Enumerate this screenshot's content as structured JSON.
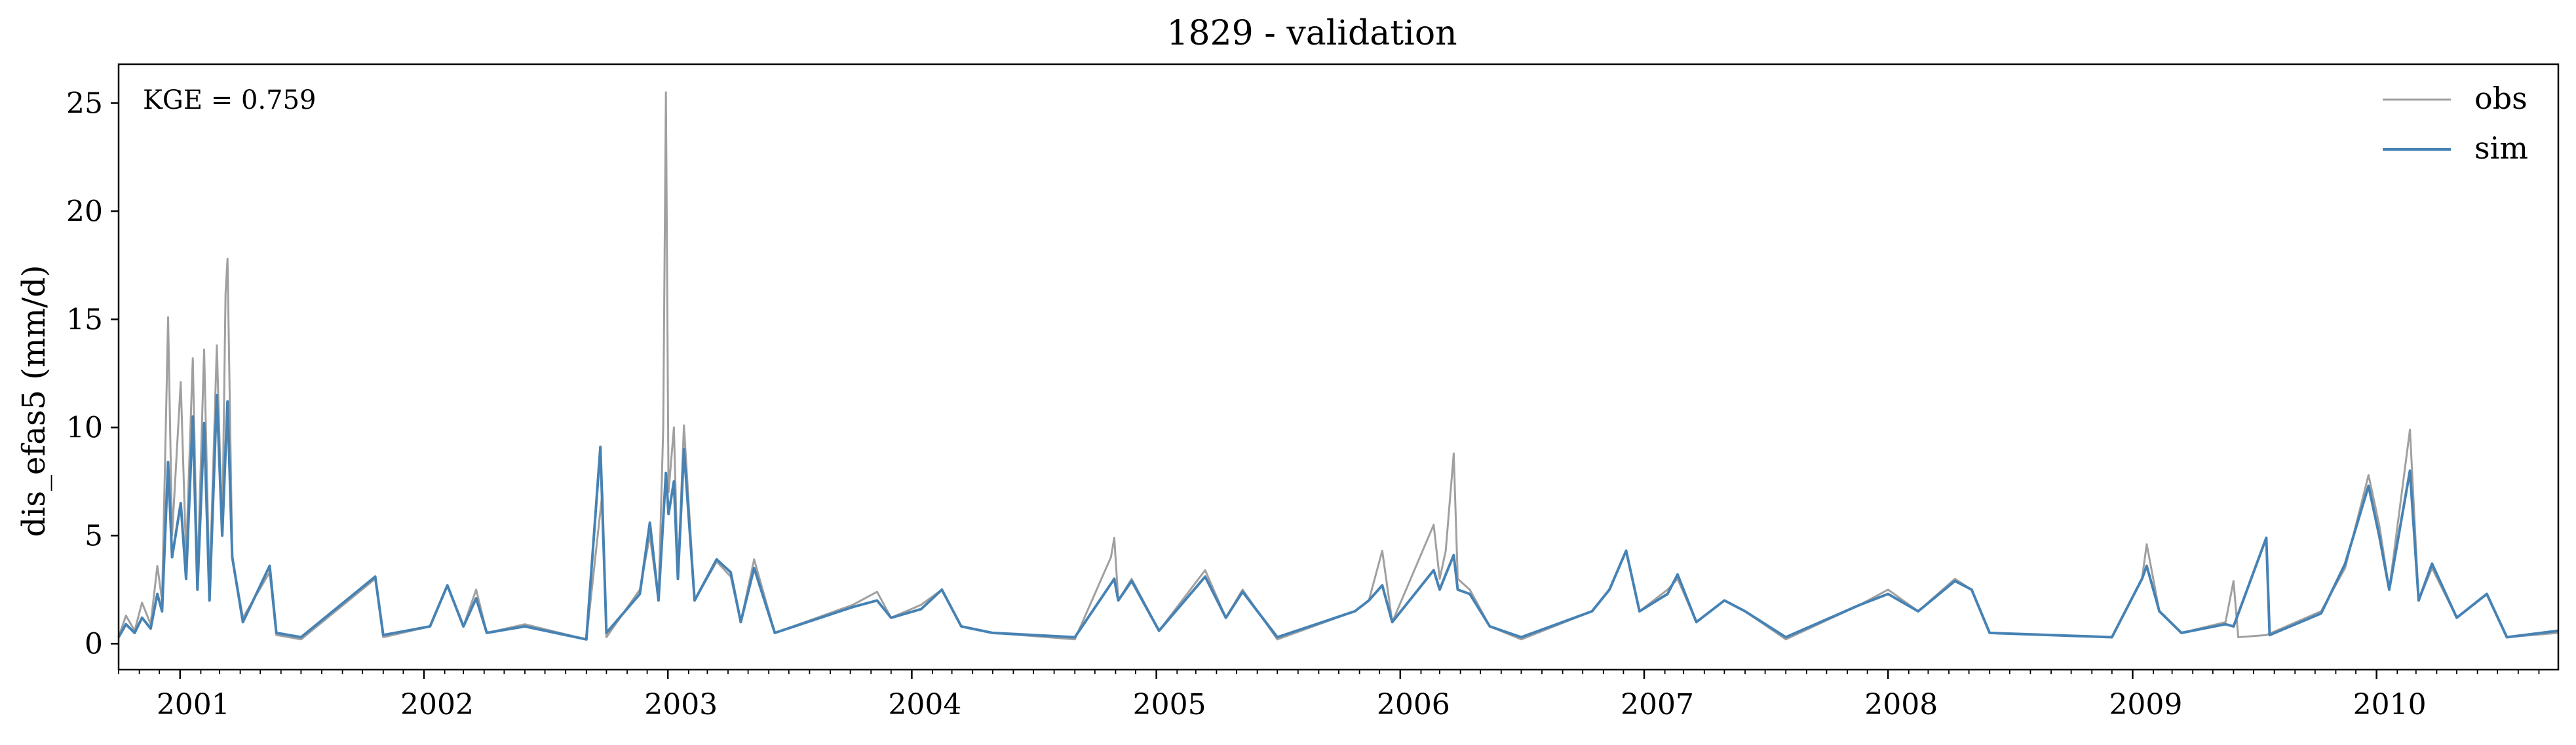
{
  "chart_data": {
    "type": "line",
    "title": "1829 - validation",
    "xlabel": "",
    "ylabel": "dis_efas5 (mm/d)",
    "annotation": "KGE = 0.759",
    "xlim": [
      "2000-10-01",
      "2010-09-30"
    ],
    "ylim": [
      -1.2,
      26.8
    ],
    "x_ticks": [
      "2001",
      "2002",
      "2003",
      "2004",
      "2005",
      "2006",
      "2007",
      "2008",
      "2009",
      "2010"
    ],
    "y_ticks": [
      0,
      5,
      10,
      15,
      20,
      25
    ],
    "grid": false,
    "legend_position": "top-right",
    "series": [
      {
        "name": "obs",
        "color": "#a0a0a0",
        "points": [
          [
            "2000-10-01",
            0.3
          ],
          [
            "2000-10-12",
            1.3
          ],
          [
            "2000-10-25",
            0.6
          ],
          [
            "2000-11-05",
            1.9
          ],
          [
            "2000-11-18",
            0.9
          ],
          [
            "2000-11-28",
            3.6
          ],
          [
            "2000-12-05",
            2.0
          ],
          [
            "2000-12-12",
            12.0
          ],
          [
            "2000-12-14",
            15.1
          ],
          [
            "2000-12-20",
            5.0
          ],
          [
            "2001-01-02",
            12.1
          ],
          [
            "2001-01-10",
            4.0
          ],
          [
            "2001-01-20",
            13.2
          ],
          [
            "2001-01-27",
            3.0
          ],
          [
            "2001-02-06",
            13.6
          ],
          [
            "2001-02-14",
            2.5
          ],
          [
            "2001-02-25",
            13.8
          ],
          [
            "2001-03-05",
            5.0
          ],
          [
            "2001-03-10",
            16.2
          ],
          [
            "2001-03-13",
            17.8
          ],
          [
            "2001-03-20",
            4.0
          ],
          [
            "2001-04-05",
            1.2
          ],
          [
            "2001-05-15",
            3.3
          ],
          [
            "2001-05-25",
            0.4
          ],
          [
            "2001-07-01",
            0.2
          ],
          [
            "2001-10-20",
            3.0
          ],
          [
            "2001-11-01",
            0.3
          ],
          [
            "2002-01-10",
            0.8
          ],
          [
            "2002-02-05",
            2.7
          ],
          [
            "2002-03-01",
            0.8
          ],
          [
            "2002-03-20",
            2.5
          ],
          [
            "2002-04-05",
            0.5
          ],
          [
            "2002-06-01",
            0.9
          ],
          [
            "2002-09-01",
            0.2
          ],
          [
            "2002-09-25",
            7.0
          ],
          [
            "2002-10-01",
            0.3
          ],
          [
            "2002-11-20",
            2.5
          ],
          [
            "2002-12-05",
            5.0
          ],
          [
            "2002-12-18",
            2.0
          ],
          [
            "2002-12-25",
            10.0
          ],
          [
            "2002-12-29",
            25.5
          ],
          [
            "2003-01-02",
            7.0
          ],
          [
            "2003-01-10",
            10.0
          ],
          [
            "2003-01-16",
            3.0
          ],
          [
            "2003-01-25",
            10.1
          ],
          [
            "2003-02-10",
            2.0
          ],
          [
            "2003-03-15",
            3.8
          ],
          [
            "2003-04-05",
            3.1
          ],
          [
            "2003-04-20",
            1.0
          ],
          [
            "2003-05-10",
            3.9
          ],
          [
            "2003-06-10",
            0.5
          ],
          [
            "2003-10-05",
            1.8
          ],
          [
            "2003-11-10",
            2.4
          ],
          [
            "2003-12-01",
            1.2
          ],
          [
            "2004-01-15",
            1.8
          ],
          [
            "2004-02-15",
            2.5
          ],
          [
            "2004-03-15",
            0.8
          ],
          [
            "2004-05-01",
            0.5
          ],
          [
            "2004-09-01",
            0.2
          ],
          [
            "2004-10-25",
            4.0
          ],
          [
            "2004-10-30",
            4.9
          ],
          [
            "2004-11-05",
            2.0
          ],
          [
            "2004-11-25",
            3.0
          ],
          [
            "2005-01-05",
            0.6
          ],
          [
            "2005-03-15",
            3.4
          ],
          [
            "2005-04-15",
            1.2
          ],
          [
            "2005-05-10",
            2.5
          ],
          [
            "2005-07-01",
            0.2
          ],
          [
            "2005-10-25",
            1.5
          ],
          [
            "2005-11-15",
            2.0
          ],
          [
            "2005-12-05",
            4.3
          ],
          [
            "2005-12-20",
            1.0
          ],
          [
            "2006-02-20",
            5.5
          ],
          [
            "2006-03-01",
            3.0
          ],
          [
            "2006-03-10",
            4.3
          ],
          [
            "2006-03-22",
            8.8
          ],
          [
            "2006-03-28",
            3.0
          ],
          [
            "2006-04-15",
            2.5
          ],
          [
            "2006-05-15",
            0.8
          ],
          [
            "2006-07-01",
            0.2
          ],
          [
            "2006-10-15",
            1.5
          ],
          [
            "2006-11-10",
            2.5
          ],
          [
            "2006-12-05",
            4.3
          ],
          [
            "2006-12-25",
            1.5
          ],
          [
            "2007-02-05",
            2.5
          ],
          [
            "2007-02-20",
            3.0
          ],
          [
            "2007-03-20",
            1.0
          ],
          [
            "2007-05-01",
            2.0
          ],
          [
            "2007-06-01",
            1.5
          ],
          [
            "2007-08-01",
            0.2
          ],
          [
            "2007-11-20",
            1.8
          ],
          [
            "2008-01-01",
            2.5
          ],
          [
            "2008-02-15",
            1.5
          ],
          [
            "2008-04-10",
            3.0
          ],
          [
            "2008-05-05",
            2.5
          ],
          [
            "2008-06-01",
            0.5
          ],
          [
            "2008-12-01",
            0.3
          ],
          [
            "2009-01-15",
            3.0
          ],
          [
            "2009-01-22",
            4.6
          ],
          [
            "2009-02-10",
            1.5
          ],
          [
            "2009-03-15",
            0.5
          ],
          [
            "2009-05-20",
            1.0
          ],
          [
            "2009-06-01",
            2.9
          ],
          [
            "2009-06-08",
            0.3
          ],
          [
            "2009-07-20",
            0.4
          ],
          [
            "2009-10-10",
            1.5
          ],
          [
            "2009-11-15",
            3.5
          ],
          [
            "2009-12-20",
            7.8
          ],
          [
            "2010-01-05",
            5.5
          ],
          [
            "2010-01-20",
            2.5
          ],
          [
            "2010-02-20",
            9.9
          ],
          [
            "2010-03-05",
            2.0
          ],
          [
            "2010-03-25",
            3.5
          ],
          [
            "2010-05-01",
            1.2
          ],
          [
            "2010-06-15",
            2.3
          ],
          [
            "2010-07-15",
            0.3
          ],
          [
            "2010-09-30",
            0.5
          ]
        ]
      },
      {
        "name": "sim",
        "color": "#4682b4",
        "points": [
          [
            "2000-10-01",
            0.3
          ],
          [
            "2000-10-12",
            0.9
          ],
          [
            "2000-10-25",
            0.5
          ],
          [
            "2000-11-05",
            1.2
          ],
          [
            "2000-11-18",
            0.7
          ],
          [
            "2000-11-28",
            2.3
          ],
          [
            "2000-12-05",
            1.5
          ],
          [
            "2000-12-14",
            8.4
          ],
          [
            "2000-12-20",
            4.0
          ],
          [
            "2001-01-02",
            6.5
          ],
          [
            "2001-01-10",
            3.0
          ],
          [
            "2001-01-20",
            10.5
          ],
          [
            "2001-01-27",
            2.5
          ],
          [
            "2001-02-06",
            10.2
          ],
          [
            "2001-02-14",
            2.0
          ],
          [
            "2001-02-25",
            11.5
          ],
          [
            "2001-03-05",
            5.0
          ],
          [
            "2001-03-13",
            11.2
          ],
          [
            "2001-03-20",
            4.0
          ],
          [
            "2001-04-05",
            1.0
          ],
          [
            "2001-05-15",
            3.6
          ],
          [
            "2001-05-25",
            0.5
          ],
          [
            "2001-07-01",
            0.3
          ],
          [
            "2001-10-20",
            3.1
          ],
          [
            "2001-11-01",
            0.4
          ],
          [
            "2002-01-10",
            0.8
          ],
          [
            "2002-02-05",
            2.7
          ],
          [
            "2002-03-01",
            0.8
          ],
          [
            "2002-03-20",
            2.1
          ],
          [
            "2002-04-05",
            0.5
          ],
          [
            "2002-06-01",
            0.8
          ],
          [
            "2002-09-01",
            0.2
          ],
          [
            "2002-09-22",
            9.1
          ],
          [
            "2002-10-01",
            0.5
          ],
          [
            "2002-11-20",
            2.3
          ],
          [
            "2002-12-05",
            5.6
          ],
          [
            "2002-12-18",
            2.0
          ],
          [
            "2002-12-29",
            7.9
          ],
          [
            "2003-01-02",
            6.0
          ],
          [
            "2003-01-10",
            7.5
          ],
          [
            "2003-01-16",
            3.0
          ],
          [
            "2003-01-25",
            9.0
          ],
          [
            "2003-02-10",
            2.0
          ],
          [
            "2003-03-15",
            3.9
          ],
          [
            "2003-04-05",
            3.3
          ],
          [
            "2003-04-20",
            1.0
          ],
          [
            "2003-05-10",
            3.5
          ],
          [
            "2003-06-10",
            0.5
          ],
          [
            "2003-10-05",
            1.7
          ],
          [
            "2003-11-10",
            2.0
          ],
          [
            "2003-12-01",
            1.2
          ],
          [
            "2004-01-15",
            1.6
          ],
          [
            "2004-02-15",
            2.5
          ],
          [
            "2004-03-15",
            0.8
          ],
          [
            "2004-05-01",
            0.5
          ],
          [
            "2004-09-01",
            0.3
          ],
          [
            "2004-10-30",
            3.0
          ],
          [
            "2004-11-05",
            2.0
          ],
          [
            "2004-11-25",
            2.9
          ],
          [
            "2005-01-05",
            0.6
          ],
          [
            "2005-03-15",
            3.1
          ],
          [
            "2005-04-15",
            1.2
          ],
          [
            "2005-05-10",
            2.4
          ],
          [
            "2005-07-01",
            0.3
          ],
          [
            "2005-10-25",
            1.5
          ],
          [
            "2005-11-15",
            2.0
          ],
          [
            "2005-12-05",
            2.7
          ],
          [
            "2005-12-20",
            1.0
          ],
          [
            "2006-02-20",
            3.4
          ],
          [
            "2006-03-01",
            2.5
          ],
          [
            "2006-03-10",
            3.2
          ],
          [
            "2006-03-22",
            4.1
          ],
          [
            "2006-03-28",
            2.5
          ],
          [
            "2006-04-15",
            2.3
          ],
          [
            "2006-05-15",
            0.8
          ],
          [
            "2006-07-01",
            0.3
          ],
          [
            "2006-10-15",
            1.5
          ],
          [
            "2006-11-10",
            2.5
          ],
          [
            "2006-12-05",
            4.3
          ],
          [
            "2006-12-25",
            1.5
          ],
          [
            "2007-02-05",
            2.3
          ],
          [
            "2007-02-20",
            3.2
          ],
          [
            "2007-03-20",
            1.0
          ],
          [
            "2007-05-01",
            2.0
          ],
          [
            "2007-06-01",
            1.5
          ],
          [
            "2007-08-01",
            0.3
          ],
          [
            "2007-11-20",
            1.8
          ],
          [
            "2008-01-01",
            2.3
          ],
          [
            "2008-02-15",
            1.5
          ],
          [
            "2008-04-10",
            2.9
          ],
          [
            "2008-05-05",
            2.5
          ],
          [
            "2008-06-01",
            0.5
          ],
          [
            "2008-12-01",
            0.3
          ],
          [
            "2009-01-15",
            3.0
          ],
          [
            "2009-01-22",
            3.6
          ],
          [
            "2009-02-10",
            1.5
          ],
          [
            "2009-03-15",
            0.5
          ],
          [
            "2009-05-20",
            0.9
          ],
          [
            "2009-06-01",
            0.8
          ],
          [
            "2009-07-20",
            4.9
          ],
          [
            "2009-07-25",
            0.4
          ],
          [
            "2009-10-10",
            1.4
          ],
          [
            "2009-11-15",
            3.7
          ],
          [
            "2009-12-20",
            7.3
          ],
          [
            "2010-01-05",
            5.0
          ],
          [
            "2010-01-20",
            2.5
          ],
          [
            "2010-02-20",
            8.0
          ],
          [
            "2010-03-05",
            2.0
          ],
          [
            "2010-03-25",
            3.7
          ],
          [
            "2010-05-01",
            1.2
          ],
          [
            "2010-06-15",
            2.3
          ],
          [
            "2010-07-15",
            0.3
          ],
          [
            "2010-09-30",
            0.6
          ]
        ]
      }
    ]
  }
}
